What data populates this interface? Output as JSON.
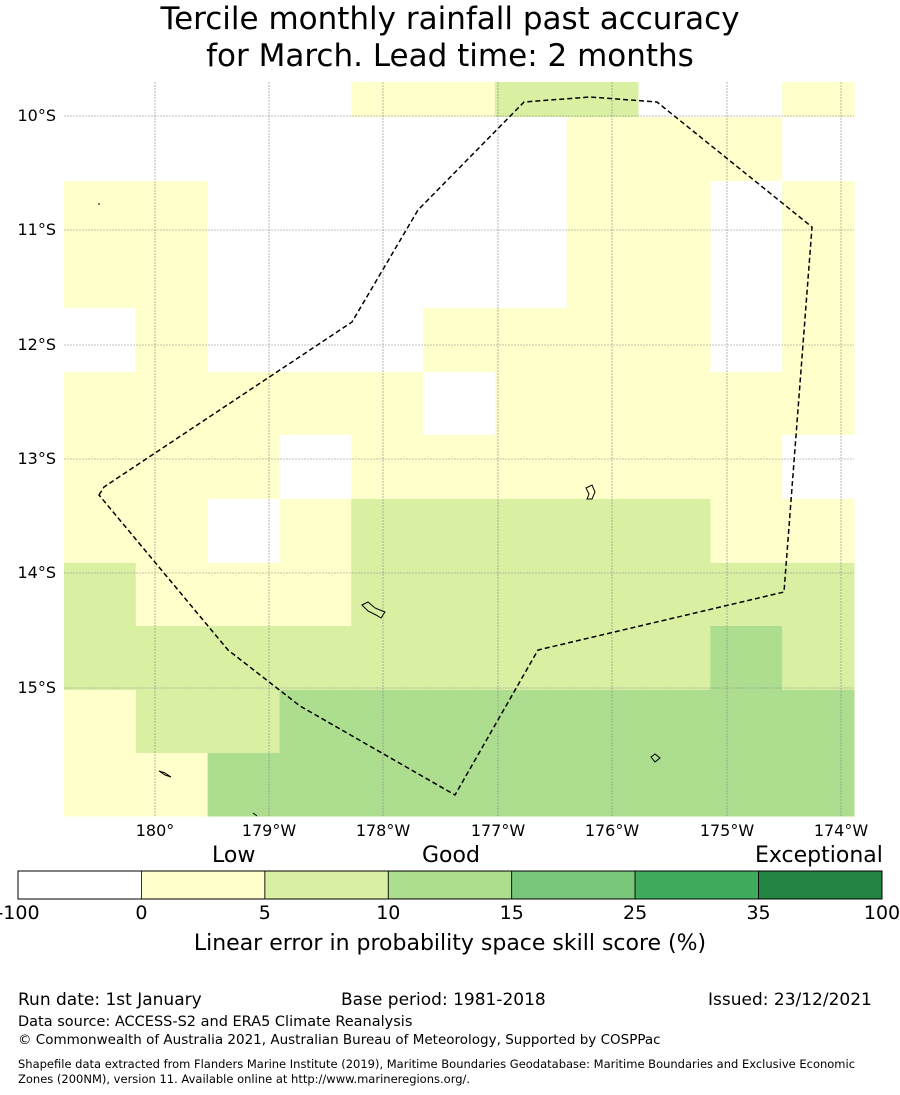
{
  "title": {
    "line1": "Tercile monthly rainfall past accuracy",
    "line2": "for March. Lead time: 2 months"
  },
  "map": {
    "lat_labels": [
      "10°S",
      "11°S",
      "12°S",
      "13°S",
      "14°S",
      "15°S"
    ],
    "lon_labels": [
      "180°",
      "179°W",
      "178°W",
      "177°W",
      "176°W",
      "175°W",
      "174°W"
    ],
    "legend_categories": [
      "Low",
      "Good",
      "Exceptional"
    ],
    "colorbar_ticks": [
      "-100",
      "0",
      "5",
      "10",
      "15",
      "25",
      "35",
      "100"
    ],
    "colorbar_bins": [
      {
        "from": -100,
        "to": 0,
        "color": "#ffffff"
      },
      {
        "from": 0,
        "to": 5,
        "color": "#ffffcc"
      },
      {
        "from": 5,
        "to": 10,
        "color": "#d9f0a3"
      },
      {
        "from": 10,
        "to": 15,
        "color": "#addd8e"
      },
      {
        "from": 15,
        "to": 25,
        "color": "#78c679"
      },
      {
        "from": 25,
        "to": 35,
        "color": "#41ab5d"
      },
      {
        "from": 35,
        "to": 100,
        "color": "#238443"
      }
    ],
    "colorbar_label": "Linear error in probability space skill score (%)",
    "grid_rows": [
      "WWWWLLGGWWL",
      "WWWWWWWLLLW",
      "LLWWWWWLLWL",
      "LLWWWWWLLWL",
      "WLWWWLLLLWL",
      "LLLLLWLLLLL",
      "LLLWLLLLLLW",
      "LLWLGGGGGLL",
      "GLLLGGGGGGG",
      "GGGGGGGGGMG",
      "LGGMMMMMMMM",
      "LLMMMMMMMMM"
    ]
  },
  "footer": {
    "run_date": "Run date: 1st January",
    "base_period": "Base period: 1981-2018",
    "issued": "Issued: 23/12/2021",
    "data_source": "Data source: ACCESS-S2 and ERA5 Climate Reanalysis",
    "copyright": "© Commonwealth of Australia 2021, Australian Bureau of Meteorology, Supported by COSPPac",
    "shapefile_line1": "Shapefile data extracted from Flanders Marine Institute (2019), Maritime Boundaries Geodatabase: Maritime Boundaries and Exclusive Economic",
    "shapefile_line2": "Zones (200NM), version 11. Available online at http://www.marineregions.org/."
  }
}
